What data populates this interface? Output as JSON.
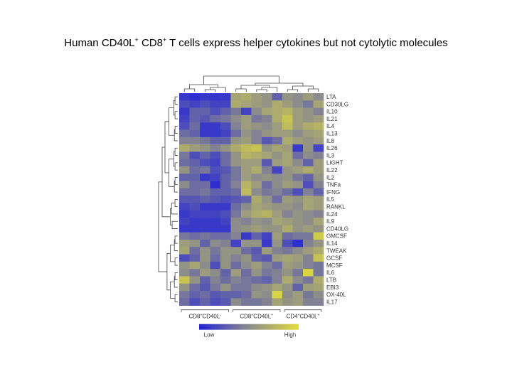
{
  "slide": {
    "title_parts": [
      "Human CD40L",
      "+",
      " CD8",
      "+",
      " T cells express helper cytokines but not cytolytic molecules"
    ]
  },
  "chart_data": {
    "type": "heatmap",
    "rows": [
      "LTA",
      "CD30LG",
      "IL10",
      "IL21",
      "IL4",
      "IL13",
      "IL8",
      "IL26",
      "IL3",
      "LIGHT",
      "IL22",
      "IL2",
      "TNFa",
      "IFNG",
      "IL5",
      "RANKL",
      "IL24",
      "IL9",
      "CD40LG",
      "GMCSF",
      "IL14",
      "TWEAK",
      "GCSF",
      "MCSF",
      "IL6",
      "LTB",
      "EBI3",
      "OX-40L",
      "IL17"
    ],
    "groups": [
      {
        "label_parts": [
          "CD8",
          "+",
          "CD40L",
          "-"
        ],
        "n_columns": 5
      },
      {
        "label_parts": [
          "CD8",
          "+",
          "CD40L",
          "+"
        ],
        "n_columns": 5
      },
      {
        "label_parts": [
          "CD4",
          "+",
          "CD40L",
          "+"
        ],
        "n_columns": 4
      }
    ],
    "scale": {
      "min": 0,
      "max": 1,
      "low_label": "Low",
      "high_label": "High",
      "low_color": "#2424d8",
      "mid_color": "#8c8c8c",
      "high_color": "#e0dc3c"
    },
    "values": [
      [
        0.1,
        0.05,
        0.1,
        0.08,
        0.1,
        0.65,
        0.7,
        0.6,
        0.55,
        0.3,
        0.55,
        0.5,
        0.6,
        0.5
      ],
      [
        0.2,
        0.15,
        0.2,
        0.15,
        0.15,
        0.7,
        0.65,
        0.6,
        0.55,
        0.7,
        0.6,
        0.5,
        0.4,
        0.65
      ],
      [
        0.1,
        0.3,
        0.3,
        0.2,
        0.3,
        0.4,
        0.15,
        0.5,
        0.65,
        0.7,
        0.75,
        0.6,
        0.55,
        0.45
      ],
      [
        0.15,
        0.3,
        0.25,
        0.35,
        0.4,
        0.5,
        0.6,
        0.4,
        0.45,
        0.7,
        0.85,
        0.6,
        0.55,
        0.6
      ],
      [
        0.2,
        0.35,
        0.1,
        0.1,
        0.2,
        0.45,
        0.6,
        0.55,
        0.5,
        0.6,
        0.8,
        0.6,
        0.7,
        0.75
      ],
      [
        0.35,
        0.3,
        0.1,
        0.1,
        0.15,
        0.35,
        0.55,
        0.45,
        0.55,
        0.6,
        0.6,
        0.5,
        0.6,
        0.65
      ],
      [
        0.45,
        0.45,
        0.4,
        0.3,
        0.3,
        0.55,
        0.6,
        0.45,
        0.25,
        0.35,
        0.7,
        0.6,
        0.55,
        0.6
      ],
      [
        0.7,
        0.6,
        0.55,
        0.45,
        0.55,
        0.7,
        0.8,
        0.85,
        0.55,
        0.65,
        0.6,
        0.1,
        0.55,
        0.15
      ],
      [
        0.4,
        0.2,
        0.3,
        0.2,
        0.35,
        0.55,
        0.75,
        0.7,
        0.65,
        0.55,
        0.65,
        0.35,
        0.5,
        0.45
      ],
      [
        0.35,
        0.3,
        0.2,
        0.15,
        0.35,
        0.55,
        0.6,
        0.6,
        0.25,
        0.6,
        0.65,
        0.5,
        0.3,
        0.6
      ],
      [
        0.55,
        0.35,
        0.4,
        0.2,
        0.25,
        0.4,
        0.6,
        0.7,
        0.45,
        0.15,
        0.55,
        0.6,
        0.7,
        0.6
      ],
      [
        0.3,
        0.3,
        0.1,
        0.15,
        0.3,
        0.4,
        0.6,
        0.5,
        0.55,
        0.5,
        0.55,
        0.4,
        0.3,
        0.55
      ],
      [
        0.5,
        0.35,
        0.35,
        0.05,
        0.3,
        0.45,
        0.75,
        0.6,
        0.35,
        0.5,
        0.6,
        0.55,
        0.2,
        0.45
      ],
      [
        0.35,
        0.35,
        0.4,
        0.3,
        0.3,
        0.35,
        0.8,
        0.5,
        0.4,
        0.45,
        0.35,
        0.2,
        0.45,
        0.3
      ],
      [
        0.25,
        0.25,
        0.3,
        0.25,
        0.2,
        0.25,
        0.3,
        0.7,
        0.55,
        0.35,
        0.6,
        0.55,
        0.65,
        0.6
      ],
      [
        0.15,
        0.2,
        0.1,
        0.1,
        0.1,
        0.35,
        0.5,
        0.65,
        0.6,
        0.55,
        0.55,
        0.5,
        0.65,
        0.6
      ],
      [
        0.1,
        0.15,
        0.15,
        0.15,
        0.2,
        0.4,
        0.6,
        0.7,
        0.75,
        0.6,
        0.45,
        0.55,
        0.5,
        0.45
      ],
      [
        0.15,
        0.1,
        0.1,
        0.1,
        0.15,
        0.5,
        0.45,
        0.55,
        0.5,
        0.65,
        0.6,
        0.55,
        0.5,
        0.65
      ],
      [
        0.1,
        0.1,
        0.1,
        0.1,
        0.1,
        0.5,
        0.55,
        0.6,
        0.55,
        0.55,
        0.7,
        0.55,
        0.6,
        0.55
      ],
      [
        0.4,
        0.35,
        0.4,
        0.35,
        0.35,
        0.45,
        0.1,
        0.3,
        0.15,
        0.6,
        0.35,
        0.4,
        0.4,
        0.9
      ],
      [
        0.6,
        0.55,
        0.3,
        0.5,
        0.45,
        0.15,
        0.55,
        0.55,
        0.1,
        0.55,
        0.2,
        0.05,
        0.45,
        0.55
      ],
      [
        0.65,
        0.35,
        0.55,
        0.4,
        0.55,
        0.55,
        0.35,
        0.25,
        0.6,
        0.45,
        0.4,
        0.5,
        0.6,
        0.7
      ],
      [
        0.2,
        0.3,
        0.55,
        0.35,
        0.55,
        0.45,
        0.55,
        0.3,
        0.25,
        0.6,
        0.65,
        0.6,
        0.45,
        0.85
      ],
      [
        0.55,
        0.65,
        0.5,
        0.2,
        0.55,
        0.35,
        0.5,
        0.6,
        0.45,
        0.35,
        0.6,
        0.55,
        0.45,
        0.4
      ],
      [
        0.5,
        0.4,
        0.6,
        0.5,
        0.3,
        0.6,
        0.35,
        0.55,
        0.4,
        0.45,
        0.55,
        0.4,
        0.95,
        0.4
      ],
      [
        0.85,
        0.55,
        0.3,
        0.45,
        0.35,
        0.45,
        0.4,
        0.35,
        0.3,
        0.45,
        0.7,
        0.5,
        0.4,
        0.7
      ],
      [
        0.55,
        0.35,
        0.25,
        0.4,
        0.55,
        0.4,
        0.4,
        0.5,
        0.55,
        0.65,
        0.55,
        0.3,
        0.6,
        0.65
      ],
      [
        0.4,
        0.3,
        0.35,
        0.25,
        0.3,
        0.3,
        0.35,
        0.55,
        0.5,
        0.95,
        0.5,
        0.6,
        0.4,
        0.5
      ],
      [
        0.35,
        0.2,
        0.3,
        0.2,
        0.25,
        0.5,
        0.4,
        0.4,
        0.45,
        0.65,
        0.55,
        0.6,
        0.45,
        0.45
      ]
    ]
  }
}
